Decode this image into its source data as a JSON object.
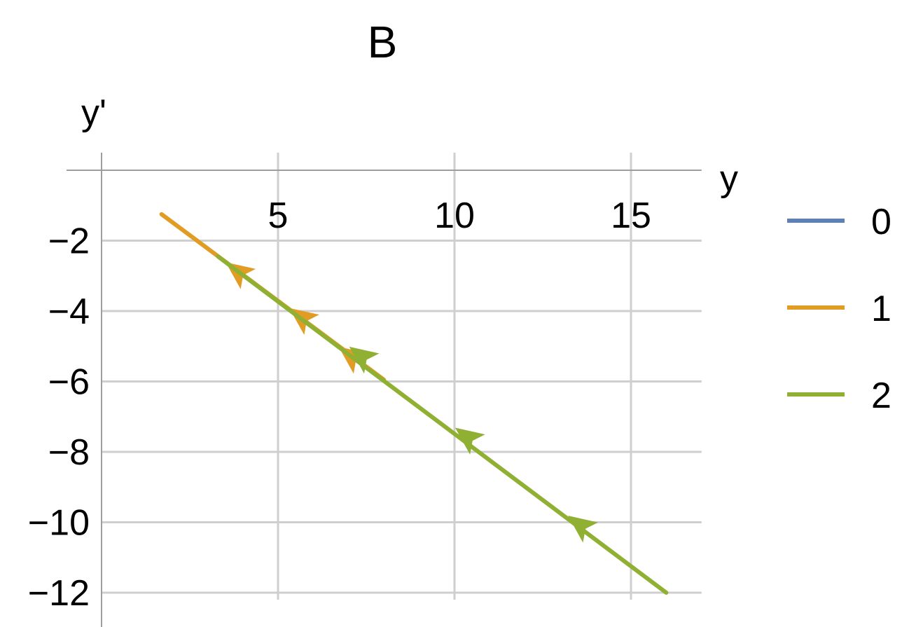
{
  "chart_data": {
    "type": "line",
    "title": "B",
    "xlabel": "y",
    "ylabel": "y'",
    "xlim": [
      0,
      17
    ],
    "ylim": [
      -12.2,
      0.5
    ],
    "xticks": [
      5,
      10,
      15
    ],
    "yticks": [
      -2,
      -4,
      -6,
      -8,
      -10,
      -12
    ],
    "xtick_labels": [
      "5",
      "10",
      "15"
    ],
    "ytick_labels": [
      "−2",
      "−4",
      "−6",
      "−8",
      "−10",
      "−12"
    ],
    "grid": true,
    "legend_position": "right",
    "series": [
      {
        "name": "0",
        "color": "#5e81b5",
        "points": [],
        "arrows": []
      },
      {
        "name": "1",
        "color": "#e19c24",
        "points": [
          [
            1.7,
            -1.25
          ],
          [
            8.0,
            -5.95
          ]
        ],
        "arrows": [
          [
            3.9,
            -2.9
          ],
          [
            5.7,
            -4.2
          ],
          [
            7.1,
            -5.3
          ]
        ]
      },
      {
        "name": "2",
        "color": "#8fb032",
        "points": [
          [
            3.3,
            -2.45
          ],
          [
            16.0,
            -12.0
          ]
        ],
        "arrows": [
          [
            7.4,
            -5.3
          ],
          [
            10.4,
            -7.6
          ],
          [
            13.6,
            -10.1
          ]
        ]
      }
    ]
  }
}
